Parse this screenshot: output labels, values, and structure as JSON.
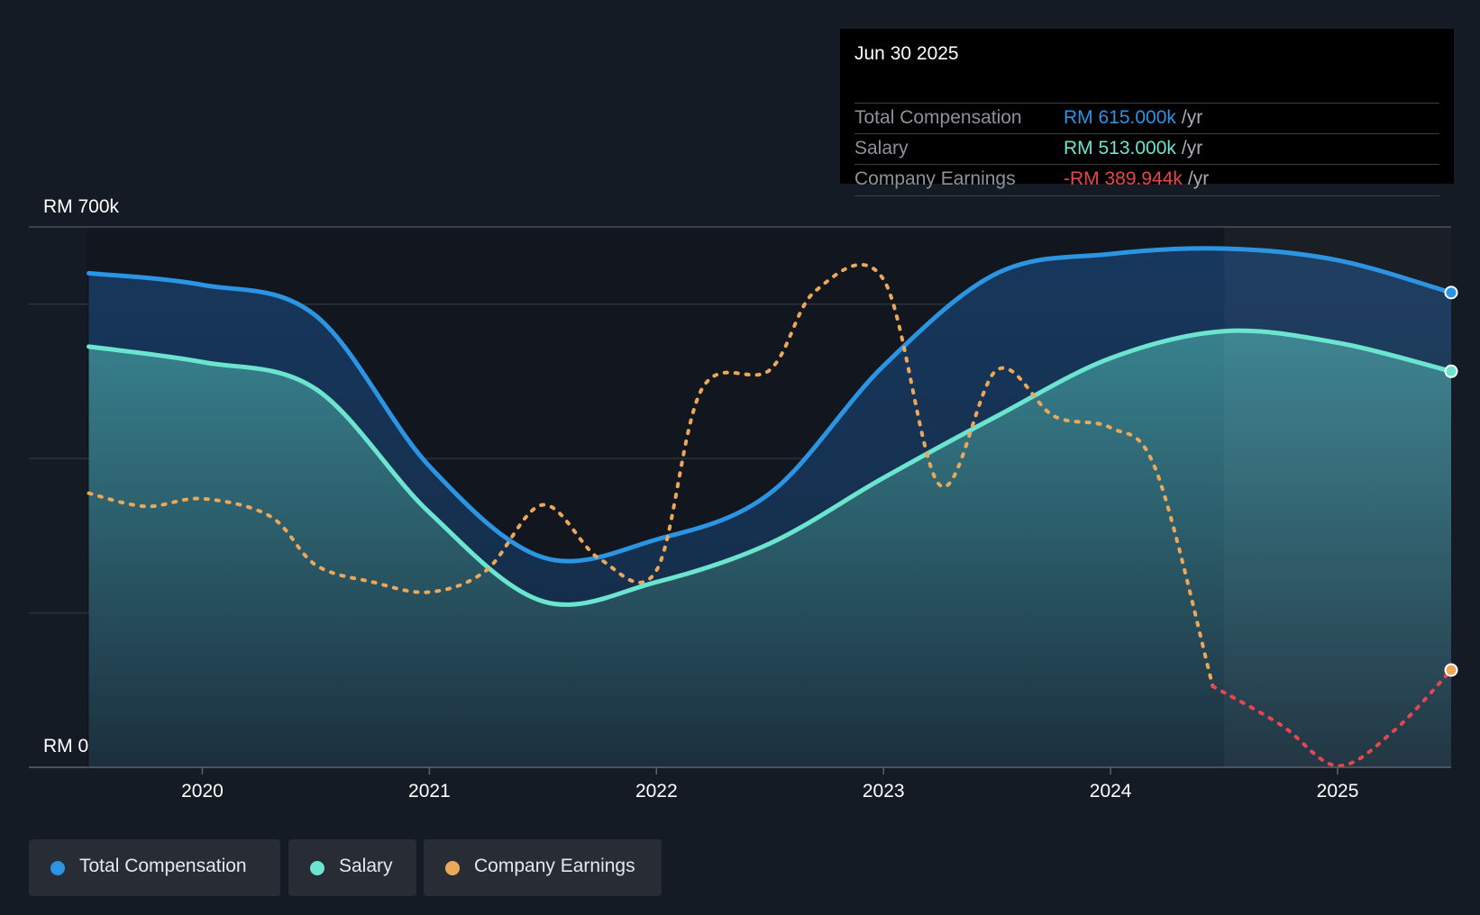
{
  "tooltip": {
    "date": "Jun 30 2025",
    "rows": [
      {
        "label": "Total Compensation",
        "value": "RM 615.000k",
        "unit": "/yr",
        "color": "#2b94e3"
      },
      {
        "label": "Salary",
        "value": "RM 513.000k",
        "unit": "/yr",
        "color": "#6ce5d0"
      },
      {
        "label": "Company Earnings",
        "value": "-RM 389.944k",
        "unit": "/yr",
        "color": "#e8454f"
      }
    ]
  },
  "legend": [
    {
      "label": "Total Compensation",
      "color": "#2b94e3"
    },
    {
      "label": "Salary",
      "color": "#6ce5d0"
    },
    {
      "label": "Company Earnings",
      "color": "#eba85a"
    }
  ],
  "chart_data": {
    "type": "area",
    "title": "",
    "y_unit": "RM",
    "ylim": [
      0,
      700
    ],
    "y_axis_labels": [
      "RM 700k",
      "RM 0"
    ],
    "gridlines": [
      0,
      200,
      400,
      600,
      700
    ],
    "x_ticks": [
      2020,
      2021,
      2022,
      2023,
      2024,
      2025
    ],
    "xlim": [
      2019.49,
      2025.5
    ],
    "highlight_start": 2024.5,
    "series": [
      {
        "name": "Total Compensation",
        "unit": "RM thousands",
        "color": "#2b94e3",
        "x": [
          2019.5,
          2020.0,
          2020.5,
          2021.0,
          2021.5,
          2022.0,
          2022.5,
          2023.0,
          2023.5,
          2024.0,
          2024.5,
          2025.0,
          2025.5
        ],
        "y": [
          640,
          625,
          585,
          390,
          272,
          295,
          355,
          520,
          640,
          665,
          672,
          657,
          615
        ]
      },
      {
        "name": "Salary",
        "unit": "RM thousands",
        "color": "#6ce5d0",
        "x": [
          2019.5,
          2020.0,
          2020.5,
          2021.0,
          2021.5,
          2022.0,
          2022.5,
          2023.0,
          2023.5,
          2024.0,
          2024.5,
          2025.0,
          2025.5
        ],
        "y": [
          545,
          525,
          490,
          330,
          215,
          240,
          290,
          375,
          455,
          530,
          565,
          550,
          513
        ]
      },
      {
        "name": "Company Earnings",
        "unit": "scaled",
        "color": "#eba85a",
        "negative_color": "#e8454f",
        "value_as_of_last": -389.944,
        "x": [
          2019.5,
          2019.75,
          2020.0,
          2020.3,
          2020.5,
          2020.75,
          2021.0,
          2021.25,
          2021.5,
          2021.75,
          2022.0,
          2022.2,
          2022.5,
          2022.7,
          2023.0,
          2023.25,
          2023.5,
          2023.75,
          2024.0,
          2024.2,
          2024.45,
          2024.75,
          2025.0,
          2025.25,
          2025.5
        ],
        "y": [
          355,
          338,
          348,
          325,
          262,
          240,
          227,
          255,
          340,
          270,
          255,
          490,
          515,
          617,
          632,
          365,
          515,
          455,
          440,
          385,
          105,
          55,
          2,
          48,
          126
        ]
      }
    ]
  }
}
